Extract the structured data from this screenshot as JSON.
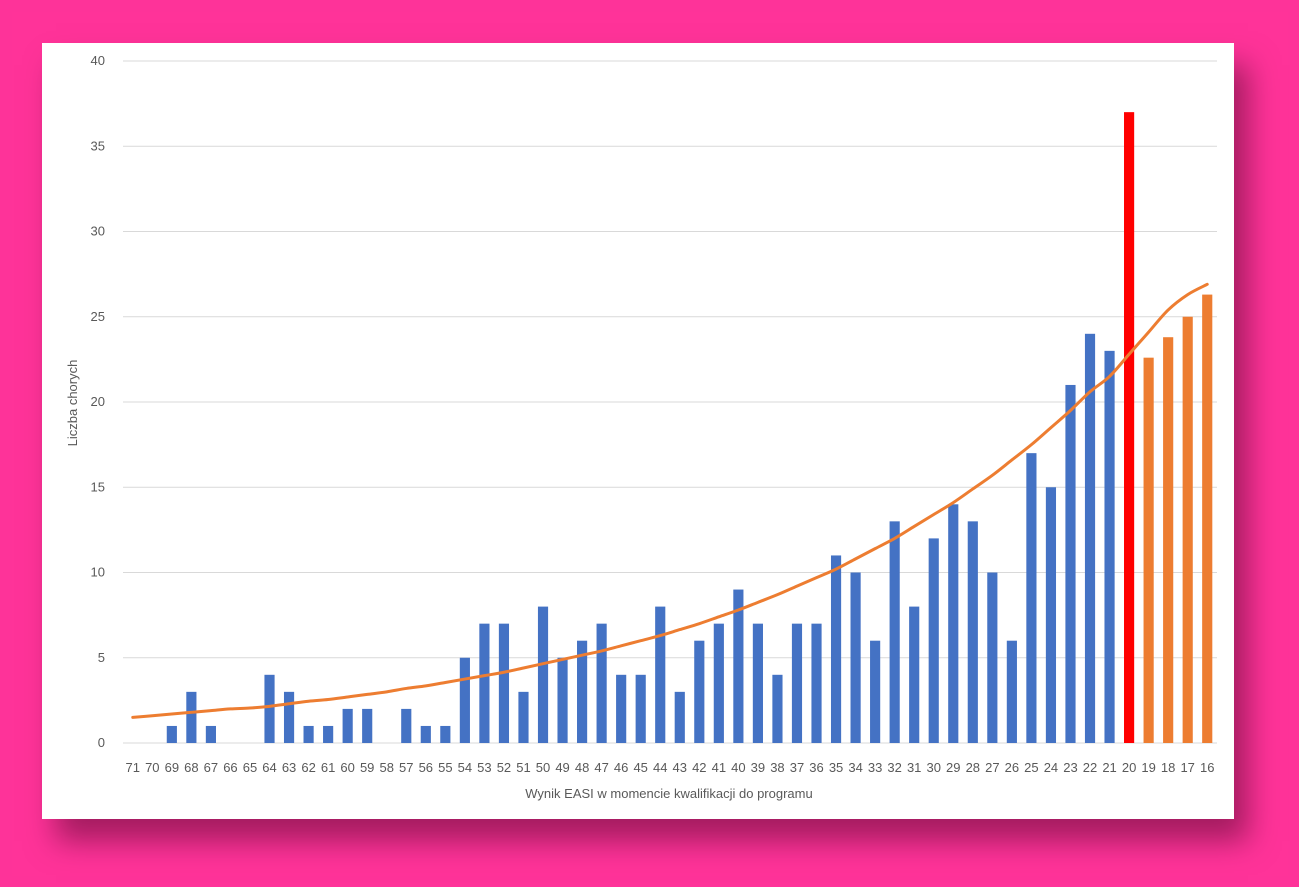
{
  "chart_data": {
    "type": "bar",
    "xlabel": "Wynik EASI w momencie kwalifikacji do programu",
    "ylabel": "Liczba chorych",
    "ylim": [
      0,
      40
    ],
    "yticks": [
      0,
      5,
      10,
      15,
      20,
      25,
      30,
      35,
      40
    ],
    "grid": true,
    "categories": [
      "71",
      "70",
      "69",
      "68",
      "67",
      "66",
      "65",
      "64",
      "63",
      "62",
      "61",
      "60",
      "59",
      "58",
      "57",
      "56",
      "55",
      "54",
      "53",
      "52",
      "51",
      "50",
      "49",
      "48",
      "47",
      "46",
      "45",
      "44",
      "43",
      "42",
      "41",
      "40",
      "39",
      "38",
      "37",
      "36",
      "35",
      "34",
      "33",
      "32",
      "31",
      "30",
      "29",
      "28",
      "27",
      "26",
      "25",
      "24",
      "23",
      "22",
      "21",
      "20",
      "19",
      "18",
      "17",
      "16"
    ],
    "values": [
      0,
      0,
      1,
      3,
      1,
      0,
      0,
      4,
      3,
      1,
      1,
      2,
      2,
      0,
      2,
      1,
      1,
      5,
      7,
      7,
      3,
      8,
      5,
      6,
      7,
      4,
      4,
      8,
      3,
      6,
      7,
      9,
      7,
      4,
      7,
      7,
      11,
      10,
      6,
      13,
      8,
      12,
      14,
      13,
      10,
      6,
      17,
      15,
      21,
      24,
      23,
      37,
      22.6,
      23.8,
      25,
      26.3
    ],
    "bar_colors": {
      "observed": "#4472c4",
      "threshold": "#ff0000",
      "projected": "#ed7d31"
    },
    "threshold_category": "20",
    "projected_categories": [
      "19",
      "18",
      "17",
      "16"
    ],
    "trendline": {
      "type": "exponential",
      "color": "#ed7d31",
      "values": [
        1.5,
        1.6,
        1.7,
        1.8,
        1.9,
        2.0,
        2.05,
        2.15,
        2.3,
        2.45,
        2.55,
        2.7,
        2.85,
        3.0,
        3.2,
        3.35,
        3.55,
        3.75,
        3.95,
        4.15,
        4.4,
        4.65,
        4.9,
        5.15,
        5.4,
        5.7,
        6.0,
        6.3,
        6.65,
        7.0,
        7.4,
        7.8,
        8.25,
        8.7,
        9.2,
        9.7,
        10.2,
        10.8,
        11.4,
        12.0,
        12.7,
        13.4,
        14.1,
        14.9,
        15.7,
        16.6,
        17.5,
        18.5,
        19.5,
        20.6,
        21.5,
        22.8,
        24.1,
        25.4,
        26.3,
        26.9
      ]
    }
  }
}
